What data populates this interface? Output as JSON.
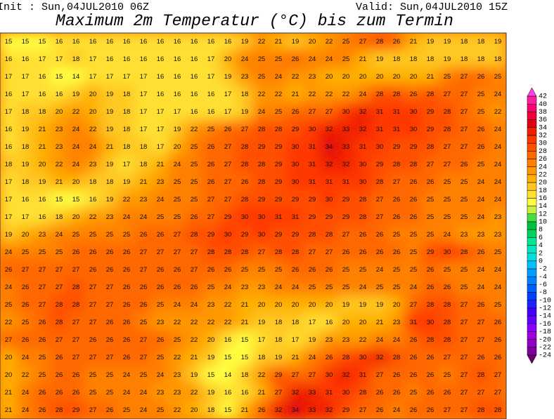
{
  "header": {
    "init": "Init : Sun,04JUL2010 06Z",
    "valid": "Valid: Sun,04JUL2010 15Z",
    "title": "Maximum 2m Temperatur (°C) bis zum Termin"
  },
  "map": {
    "grid": [
      [
        15,
        15,
        15,
        16,
        16,
        16,
        16,
        16,
        16,
        16,
        16,
        16,
        16,
        16,
        19,
        22,
        21,
        19,
        20,
        22,
        25,
        27,
        28,
        26,
        21,
        19,
        19,
        18,
        18,
        19
      ],
      [
        16,
        16,
        17,
        17,
        18,
        17,
        16,
        16,
        16,
        16,
        16,
        16,
        17,
        20,
        24,
        25,
        25,
        26,
        24,
        24,
        25,
        21,
        19,
        18,
        18,
        18,
        19,
        18,
        18,
        18
      ],
      [
        17,
        17,
        16,
        15,
        14,
        17,
        17,
        17,
        17,
        16,
        16,
        16,
        17,
        19,
        23,
        25,
        24,
        22,
        23,
        20,
        20,
        20,
        20,
        20,
        20,
        21,
        25,
        27,
        26,
        25
      ],
      [
        16,
        17,
        16,
        16,
        19,
        20,
        19,
        18,
        17,
        16,
        16,
        16,
        16,
        17,
        18,
        22,
        22,
        21,
        22,
        22,
        22,
        24,
        28,
        28,
        26,
        28,
        27,
        27,
        25,
        24
      ],
      [
        17,
        18,
        18,
        20,
        22,
        20,
        19,
        18,
        17,
        17,
        17,
        16,
        16,
        17,
        19,
        24,
        25,
        26,
        27,
        27,
        30,
        32,
        31,
        31,
        30,
        29,
        28,
        27,
        25,
        22
      ],
      [
        16,
        19,
        21,
        23,
        24,
        22,
        19,
        18,
        17,
        17,
        19,
        22,
        25,
        26,
        27,
        28,
        28,
        29,
        30,
        32,
        33,
        32,
        31,
        31,
        30,
        29,
        28,
        27,
        26,
        24
      ],
      [
        16,
        18,
        21,
        23,
        24,
        24,
        21,
        18,
        18,
        17,
        20,
        25,
        26,
        27,
        28,
        29,
        29,
        30,
        31,
        34,
        33,
        31,
        30,
        29,
        29,
        28,
        27,
        27,
        26,
        24
      ],
      [
        18,
        19,
        20,
        22,
        24,
        23,
        19,
        17,
        18,
        21,
        24,
        25,
        26,
        27,
        28,
        28,
        29,
        30,
        31,
        32,
        32,
        30,
        29,
        28,
        28,
        27,
        27,
        26,
        25,
        24
      ],
      [
        17,
        18,
        19,
        21,
        20,
        18,
        18,
        19,
        21,
        23,
        25,
        25,
        26,
        27,
        26,
        28,
        29,
        30,
        31,
        31,
        31,
        30,
        28,
        27,
        26,
        26,
        25,
        25,
        24,
        24
      ],
      [
        17,
        16,
        16,
        15,
        15,
        16,
        19,
        22,
        23,
        24,
        25,
        25,
        27,
        27,
        28,
        29,
        29,
        29,
        29,
        30,
        29,
        28,
        27,
        26,
        26,
        25,
        25,
        25,
        24,
        24
      ],
      [
        17,
        17,
        16,
        18,
        20,
        22,
        23,
        24,
        24,
        25,
        25,
        26,
        27,
        29,
        30,
        30,
        31,
        31,
        29,
        29,
        29,
        28,
        27,
        26,
        26,
        25,
        25,
        25,
        24,
        23
      ],
      [
        19,
        20,
        23,
        24,
        25,
        25,
        25,
        25,
        26,
        26,
        27,
        28,
        29,
        30,
        29,
        30,
        29,
        29,
        28,
        28,
        27,
        26,
        26,
        25,
        25,
        25,
        24,
        23,
        23,
        23
      ],
      [
        24,
        25,
        25,
        25,
        26,
        26,
        26,
        26,
        27,
        27,
        27,
        27,
        28,
        28,
        28,
        27,
        28,
        28,
        27,
        27,
        26,
        26,
        26,
        26,
        25,
        29,
        30,
        28,
        26,
        25
      ],
      [
        26,
        27,
        27,
        27,
        27,
        26,
        26,
        26,
        27,
        26,
        26,
        27,
        26,
        26,
        25,
        25,
        25,
        26,
        26,
        26,
        25,
        25,
        24,
        25,
        25,
        26,
        25,
        25,
        24,
        24
      ],
      [
        24,
        26,
        27,
        27,
        28,
        27,
        27,
        26,
        26,
        26,
        26,
        26,
        25,
        24,
        23,
        23,
        24,
        24,
        25,
        25,
        25,
        24,
        25,
        25,
        24,
        26,
        26,
        25,
        24,
        24
      ],
      [
        25,
        26,
        27,
        28,
        28,
        27,
        27,
        26,
        26,
        25,
        24,
        24,
        23,
        22,
        21,
        20,
        20,
        20,
        20,
        20,
        19,
        19,
        19,
        20,
        27,
        28,
        28,
        27,
        26,
        25
      ],
      [
        22,
        25,
        26,
        28,
        27,
        27,
        26,
        26,
        25,
        23,
        22,
        22,
        22,
        22,
        21,
        19,
        18,
        18,
        17,
        16,
        20,
        20,
        21,
        23,
        31,
        30,
        28,
        27,
        27,
        26
      ],
      [
        27,
        26,
        26,
        27,
        27,
        26,
        26,
        26,
        27,
        26,
        25,
        22,
        20,
        16,
        15,
        17,
        18,
        17,
        19,
        23,
        23,
        22,
        24,
        24,
        26,
        28,
        28,
        27,
        27,
        26
      ],
      [
        20,
        24,
        25,
        26,
        27,
        27,
        27,
        26,
        27,
        25,
        22,
        21,
        19,
        15,
        15,
        18,
        19,
        21,
        24,
        26,
        28,
        30,
        32,
        28,
        26,
        26,
        27,
        27,
        26,
        26
      ],
      [
        20,
        22,
        25,
        26,
        26,
        25,
        25,
        24,
        25,
        24,
        23,
        19,
        15,
        14,
        18,
        22,
        29,
        27,
        27,
        30,
        32,
        31,
        27,
        26,
        26,
        26,
        25,
        27,
        28,
        27
      ],
      [
        21,
        24,
        26,
        26,
        26,
        25,
        25,
        24,
        24,
        23,
        23,
        22,
        19,
        16,
        16,
        21,
        27,
        32,
        33,
        31,
        30,
        28,
        26,
        26,
        25,
        26,
        26,
        27,
        27,
        27
      ],
      [
        21,
        24,
        26,
        28,
        29,
        27,
        26,
        25,
        24,
        25,
        22,
        20,
        18,
        15,
        21,
        26,
        32,
        34,
        33,
        32,
        29,
        27,
        26,
        24,
        26,
        26,
        27,
        27,
        28,
        28
      ]
    ]
  },
  "colorbar": {
    "levels": [
      -24,
      -22,
      -20,
      -18,
      -16,
      -14,
      -12,
      -10,
      -8,
      -6,
      -4,
      -2,
      0,
      2,
      4,
      6,
      8,
      10,
      12,
      14,
      16,
      18,
      20,
      22,
      24,
      26,
      28,
      30,
      32,
      34,
      36,
      38,
      40,
      42
    ],
    "colors": [
      "#6a006a",
      "#8000a0",
      "#9400c8",
      "#a000e0",
      "#8c00ff",
      "#6000ff",
      "#4000ff",
      "#2020ff",
      "#0040ff",
      "#0060ff",
      "#0080ff",
      "#00a0ff",
      "#00c0ff",
      "#00e0e0",
      "#00e8c0",
      "#00e890",
      "#00d060",
      "#00c040",
      "#40e040",
      "#c8f040",
      "#ffff40",
      "#ffe030",
      "#ffc820",
      "#ffb000",
      "#ff9800",
      "#ff8000",
      "#ff6800",
      "#ff5000",
      "#ff3800",
      "#f02000",
      "#e00010",
      "#f00040",
      "#ff0070",
      "#ff20a0",
      "#ff40e0"
    ]
  }
}
